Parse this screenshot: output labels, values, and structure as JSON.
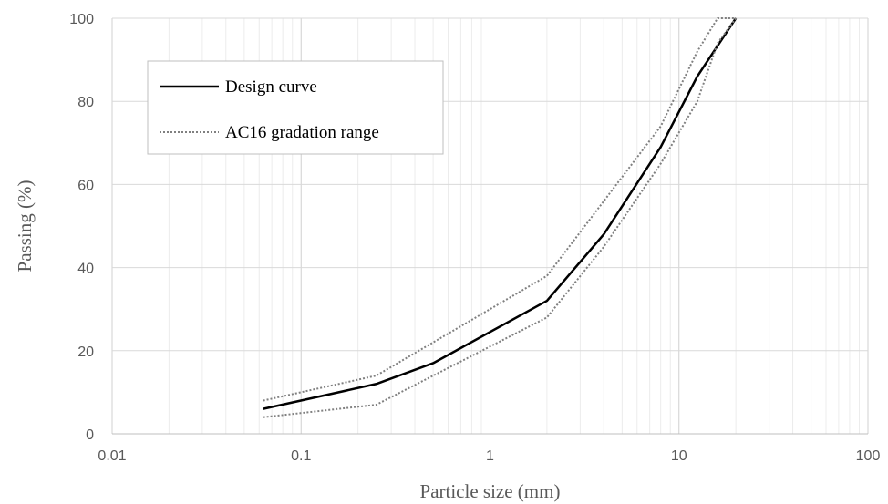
{
  "chart_data": {
    "type": "line",
    "x_scale": "log",
    "xlim": [
      0.01,
      100
    ],
    "ylim": [
      0,
      100
    ],
    "xlabel": "Particle size (mm)",
    "ylabel": "Passing (%)",
    "x_ticks": [
      "0.01",
      "0.1",
      "1",
      "10",
      "100"
    ],
    "y_ticks": [
      "0",
      "20",
      "40",
      "60",
      "80",
      "100"
    ],
    "grid": true,
    "legend_position": "top-left",
    "legend": [
      "Design curve",
      "AC16 gradation range"
    ],
    "series": [
      {
        "name": "Design curve",
        "style": "solid",
        "color": "#000000",
        "points": [
          [
            0.063,
            6
          ],
          [
            0.25,
            12
          ],
          [
            0.5,
            17
          ],
          [
            2,
            32
          ],
          [
            4,
            48
          ],
          [
            8,
            69
          ],
          [
            12.5,
            86
          ],
          [
            20,
            100
          ]
        ]
      },
      {
        "name": "AC16 gradation range",
        "style": "dotted",
        "color": "#808080",
        "points": [
          [
            0.063,
            8
          ],
          [
            0.25,
            14
          ],
          [
            0.5,
            22
          ],
          [
            2,
            38
          ],
          [
            4,
            56
          ],
          [
            8,
            74
          ],
          [
            12.5,
            92
          ],
          [
            16,
            100
          ],
          [
            20,
            100
          ]
        ]
      },
      {
        "name": "",
        "style": "dotted",
        "color": "#808080",
        "points": [
          [
            0.063,
            4
          ],
          [
            0.25,
            7
          ],
          [
            0.5,
            14
          ],
          [
            2,
            28
          ],
          [
            4,
            45
          ],
          [
            8,
            65
          ],
          [
            12.5,
            80
          ],
          [
            16,
            94
          ],
          [
            20,
            100
          ]
        ]
      }
    ]
  }
}
